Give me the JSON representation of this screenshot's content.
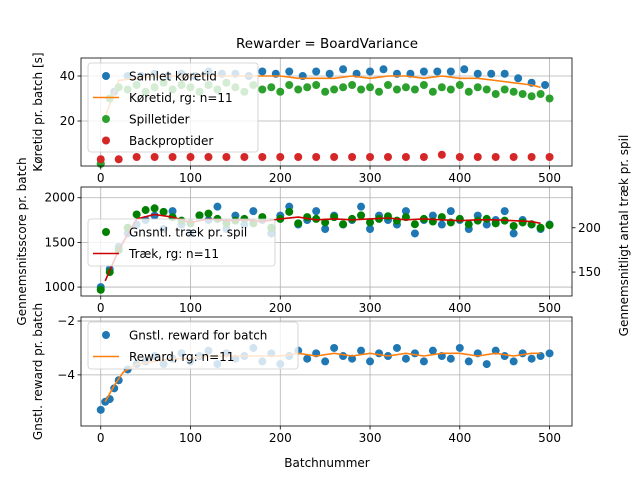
{
  "chart_data": {
    "title": "Rewarder = BoardVariance",
    "xlabel": "Batchnummer",
    "x_ticks": [
      0,
      100,
      200,
      300,
      400,
      500
    ],
    "xlim": [
      -22,
      525
    ],
    "grid": true,
    "panels": [
      {
        "type": "scatter",
        "ylabel": "Køretid pr. batch [s]",
        "ylim": [
          0,
          48
        ],
        "y_ticks": [
          20,
          40
        ],
        "legend_position": "top-left",
        "series": [
          {
            "name": "Samlet køretid",
            "kind": "points",
            "color": "#1f77b4",
            "x": [
              0,
              15,
              30,
              45,
              60,
              75,
              90,
              105,
              120,
              135,
              150,
              165,
              180,
              195,
              210,
              225,
              240,
              255,
              270,
              285,
              300,
              315,
              330,
              345,
              360,
              375,
              390,
              405,
              420,
              435,
              450,
              465,
              480,
              495
            ],
            "y": [
              1,
              33,
              40,
              40,
              41,
              40,
              41,
              40,
              42,
              41,
              41,
              40,
              42,
              41,
              42,
              40,
              42,
              41,
              43,
              41,
              42,
              43,
              41,
              41,
              42,
              42,
              42,
              43,
              41,
              41,
              41,
              39,
              37,
              36
            ]
          },
          {
            "name": "Køretid, rg: n=11",
            "kind": "line",
            "color": "#ff7f0e",
            "x": [
              5,
              20,
              40,
              60,
              80,
              100,
              120,
              140,
              160,
              180,
              200,
              220,
              240,
              260,
              280,
              300,
              320,
              340,
              360,
              380,
              400,
              420,
              440,
              460,
              480,
              490
            ],
            "y": [
              22,
              38,
              39,
              40,
              40,
              40,
              40,
              40,
              40,
              40,
              40,
              39,
              39,
              39,
              40,
              39,
              40,
              40,
              39,
              40,
              39,
              39,
              38,
              37,
              36,
              35
            ]
          },
          {
            "name": "Spilletider",
            "kind": "points",
            "color": "#2ca02c",
            "x": [
              0,
              10,
              20,
              30,
              40,
              50,
              60,
              70,
              80,
              90,
              100,
              110,
              120,
              130,
              140,
              150,
              160,
              170,
              180,
              190,
              200,
              210,
              220,
              230,
              240,
              250,
              260,
              270,
              280,
              290,
              300,
              310,
              320,
              330,
              340,
              350,
              360,
              370,
              380,
              390,
              400,
              410,
              420,
              430,
              440,
              450,
              460,
              470,
              480,
              490,
              500
            ],
            "y": [
              1,
              30,
              35,
              34,
              36,
              33,
              35,
              37,
              34,
              36,
              35,
              33,
              36,
              34,
              37,
              35,
              33,
              36,
              34,
              35,
              33,
              36,
              34,
              35,
              36,
              33,
              34,
              35,
              36,
              34,
              35,
              33,
              36,
              34,
              35,
              34,
              36,
              33,
              35,
              34,
              36,
              33,
              35,
              34,
              32,
              34,
              33,
              32,
              31,
              32,
              30
            ]
          },
          {
            "name": "Backproptider",
            "kind": "points",
            "color": "#d62728",
            "x": [
              0,
              20,
              40,
              60,
              80,
              100,
              120,
              140,
              160,
              180,
              200,
              220,
              240,
              260,
              280,
              300,
              320,
              340,
              360,
              380,
              400,
              420,
              440,
              460,
              480,
              500
            ],
            "y": [
              3,
              3,
              4,
              4,
              4,
              4,
              4,
              4,
              4,
              4,
              4,
              4,
              4,
              4,
              4,
              4,
              4,
              4,
              4,
              5,
              4,
              4,
              4,
              4,
              4,
              4
            ]
          }
        ]
      },
      {
        "type": "scatter",
        "ylabel": "Gennemsnitsscore pr. batch",
        "ylim": [
          900,
          2120
        ],
        "y_ticks": [
          1000,
          1500,
          2000
        ],
        "ylabel_right": "Gennemsnitligt antal træk pr. spil",
        "ylim_right": [
          123,
          246
        ],
        "y_ticks_right": [
          150,
          200
        ],
        "legend_position": "center-left",
        "series": [
          {
            "name": "",
            "kind": "points",
            "color": "#1f77b4",
            "axis": "left",
            "x": [
              0,
              10,
              20,
              30,
              40,
              50,
              60,
              70,
              80,
              90,
              100,
              110,
              120,
              130,
              140,
              150,
              160,
              170,
              180,
              190,
              200,
              210,
              220,
              230,
              240,
              250,
              260,
              270,
              280,
              290,
              300,
              310,
              320,
              330,
              340,
              350,
              360,
              370,
              380,
              390,
              400,
              410,
              420,
              430,
              440,
              450,
              460,
              470,
              480,
              490,
              500
            ],
            "y": [
              1000,
              1200,
              1450,
              1600,
              1700,
              1750,
              1800,
              1650,
              1850,
              1700,
              1600,
              1800,
              1750,
              1900,
              1650,
              1800,
              1700,
              1850,
              1750,
              1600,
              1800,
              1900,
              1700,
              1750,
              1850,
              1650,
              1800,
              1700,
              1750,
              1900,
              1650,
              1800,
              1750,
              1700,
              1850,
              1600,
              1750,
              1800,
              1700,
              1850,
              1750,
              1650,
              1800,
              1700,
              1750,
              1850,
              1600,
              1750,
              1700,
              1650,
              1700
            ]
          },
          {
            "name": "Gnsntl. træk pr. spil",
            "kind": "points",
            "color": "#008000",
            "axis": "right",
            "x": [
              0,
              10,
              20,
              30,
              40,
              50,
              60,
              70,
              80,
              90,
              100,
              110,
              120,
              130,
              140,
              150,
              160,
              170,
              180,
              190,
              200,
              210,
              220,
              230,
              240,
              250,
              260,
              270,
              280,
              290,
              300,
              310,
              320,
              330,
              340,
              350,
              360,
              370,
              380,
              390,
              400,
              410,
              420,
              430,
              440,
              450,
              460,
              470,
              480,
              490,
              500
            ],
            "y": [
              130,
              150,
              175,
              200,
              215,
              220,
              222,
              218,
              212,
              208,
              205,
              214,
              216,
              210,
              205,
              208,
              210,
              205,
              212,
              200,
              210,
              218,
              205,
              212,
              210,
              206,
              212,
              204,
              210,
              214,
              206,
              210,
              213,
              208,
              212,
              204,
              210,
              207,
              212,
              206,
              210,
              204,
              208,
              210,
              205,
              208,
              202,
              206,
              204,
              200,
              203
            ]
          },
          {
            "name": "Træk, rg: n=11",
            "kind": "line",
            "color": "#cc0000",
            "axis": "right",
            "x": [
              5,
              20,
              40,
              60,
              80,
              100,
              120,
              140,
              160,
              180,
              200,
              220,
              240,
              260,
              280,
              300,
              320,
              340,
              360,
              380,
              400,
              420,
              440,
              460,
              480,
              490
            ],
            "y": [
              140,
              175,
              210,
              215,
              212,
              206,
              210,
              208,
              209,
              207,
              210,
              212,
              209,
              210,
              209,
              210,
              211,
              209,
              210,
              209,
              208,
              209,
              209,
              208,
              207,
              205
            ]
          }
        ]
      },
      {
        "type": "scatter",
        "ylabel": "Gnstl. reward pr. batch",
        "ylim": [
          -5.9,
          -1.85
        ],
        "y_ticks": [
          -4,
          -2
        ],
        "legend_position": "top-left",
        "series": [
          {
            "name": "Gnstl. reward for batch",
            "kind": "points",
            "color": "#1f77b4",
            "x": [
              0,
              5,
              10,
              15,
              20,
              30,
              40,
              50,
              60,
              70,
              80,
              90,
              100,
              110,
              120,
              130,
              140,
              150,
              160,
              170,
              180,
              190,
              200,
              210,
              220,
              230,
              240,
              250,
              260,
              270,
              280,
              290,
              300,
              310,
              320,
              330,
              340,
              350,
              360,
              370,
              380,
              390,
              400,
              410,
              420,
              430,
              440,
              450,
              460,
              470,
              480,
              490,
              500
            ],
            "y": [
              -5.3,
              -5.0,
              -4.9,
              -4.5,
              -4.2,
              -3.8,
              -3.6,
              -3.5,
              -3.3,
              -3.6,
              -3.4,
              -3.2,
              -3.5,
              -3.3,
              -3.1,
              -3.6,
              -3.2,
              -3.4,
              -3.3,
              -3.0,
              -3.5,
              -3.2,
              -3.6,
              -3.3,
              -3.1,
              -3.4,
              -3.2,
              -3.5,
              -3.0,
              -3.3,
              -3.4,
              -3.1,
              -3.5,
              -3.2,
              -3.3,
              -3.0,
              -3.4,
              -3.2,
              -3.5,
              -3.1,
              -3.3,
              -3.4,
              -3.0,
              -3.5,
              -3.2,
              -3.6,
              -3.1,
              -3.3,
              -3.5,
              -3.2,
              -3.4,
              -3.3,
              -3.2
            ]
          },
          {
            "name": "Reward, rg: n=11",
            "kind": "line",
            "color": "#ff7f0e",
            "x": [
              5,
              15,
              25,
              40,
              60,
              80,
              100,
              120,
              140,
              160,
              180,
              200,
              220,
              240,
              260,
              280,
              300,
              320,
              340,
              360,
              380,
              400,
              420,
              440,
              460,
              480,
              490
            ],
            "y": [
              -5.0,
              -4.4,
              -3.9,
              -3.6,
              -3.5,
              -3.4,
              -3.4,
              -3.3,
              -3.3,
              -3.3,
              -3.3,
              -3.3,
              -3.2,
              -3.3,
              -3.2,
              -3.3,
              -3.2,
              -3.3,
              -3.2,
              -3.3,
              -3.2,
              -3.2,
              -3.3,
              -3.2,
              -3.3,
              -3.2,
              -3.2
            ]
          }
        ]
      }
    ]
  }
}
